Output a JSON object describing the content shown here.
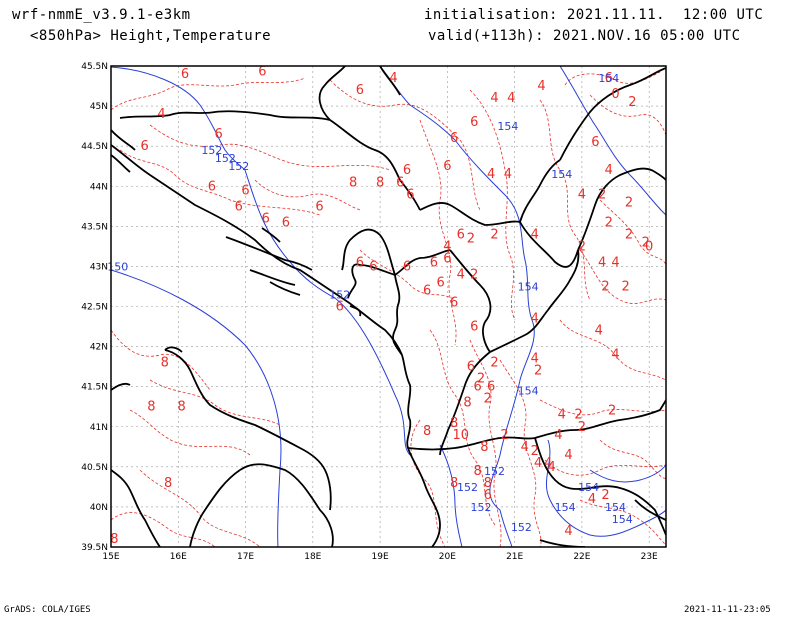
{
  "header": {
    "model": "wrf-nmmE_v3.9.1-e3km",
    "field": "<850hPa> Height,Temperature",
    "init": "initialisation: 2021.11.11.  12:00 UTC",
    "valid": "valid(+113h): 2021.NOV.16 05:00 UTC"
  },
  "footer": {
    "credit": "GrADS: COLA/IGES",
    "timestamp": "2021-11-11-23:05"
  },
  "map": {
    "lon_range": [
      15,
      23.25
    ],
    "lat_range": [
      39.5,
      45.5
    ],
    "x_ticks": [
      "15E",
      "16E",
      "17E",
      "18E",
      "19E",
      "20E",
      "21E",
      "22E",
      "23E"
    ],
    "y_ticks": [
      "39.5N",
      "40N",
      "40.5N",
      "41N",
      "41.5N",
      "42N",
      "42.5N",
      "43N",
      "43.5N",
      "44N",
      "44.5N",
      "45N",
      "45.5N"
    ],
    "colors": {
      "height": "#2a3fd6",
      "temperature": "#e8302a",
      "coast": "#000000",
      "grid": "#9a9a9a"
    },
    "height_labels": [
      {
        "text": "152",
        "lon": 16.5,
        "lat": 44.4
      },
      {
        "text": "152",
        "lon": 16.7,
        "lat": 44.3
      },
      {
        "text": "152",
        "lon": 16.9,
        "lat": 44.2
      },
      {
        "text": "150",
        "lon": 15.1,
        "lat": 42.95
      },
      {
        "text": "152",
        "lon": 18.4,
        "lat": 42.6
      },
      {
        "text": "154",
        "lon": 20.9,
        "lat": 44.7
      },
      {
        "text": "154",
        "lon": 21.7,
        "lat": 44.1
      },
      {
        "text": "154",
        "lon": 21.2,
        "lat": 42.7
      },
      {
        "text": "154",
        "lon": 21.2,
        "lat": 41.4
      },
      {
        "text": "154",
        "lon": 22.4,
        "lat": 45.3
      },
      {
        "text": "152",
        "lon": 20.7,
        "lat": 40.4
      },
      {
        "text": "152",
        "lon": 20.3,
        "lat": 40.2
      },
      {
        "text": "152",
        "lon": 20.5,
        "lat": 39.95
      },
      {
        "text": "152",
        "lon": 21.1,
        "lat": 39.7
      },
      {
        "text": "154",
        "lon": 21.75,
        "lat": 39.95
      },
      {
        "text": "154",
        "lon": 22.5,
        "lat": 39.95
      },
      {
        "text": "154",
        "lon": 22.6,
        "lat": 39.8
      },
      {
        "text": "154",
        "lon": 22.1,
        "lat": 40.2
      }
    ],
    "temp_labels": [
      {
        "text": "6",
        "lon": 16.1,
        "lat": 45.35
      },
      {
        "text": "6",
        "lon": 17.25,
        "lat": 45.38
      },
      {
        "text": "4",
        "lon": 15.75,
        "lat": 44.85
      },
      {
        "text": "6",
        "lon": 16.6,
        "lat": 44.6
      },
      {
        "text": "6",
        "lon": 15.5,
        "lat": 44.45
      },
      {
        "text": "6",
        "lon": 16.5,
        "lat": 43.95
      },
      {
        "text": "6",
        "lon": 17.0,
        "lat": 43.9
      },
      {
        "text": "8",
        "lon": 18.6,
        "lat": 44.0
      },
      {
        "text": "8",
        "lon": 19.0,
        "lat": 44.0
      },
      {
        "text": "6",
        "lon": 19.3,
        "lat": 44.0
      },
      {
        "text": "6",
        "lon": 18.7,
        "lat": 45.15
      },
      {
        "text": "6",
        "lon": 19.4,
        "lat": 44.15
      },
      {
        "text": "6",
        "lon": 19.45,
        "lat": 43.85
      },
      {
        "text": "6",
        "lon": 16.9,
        "lat": 43.7
      },
      {
        "text": "6",
        "lon": 17.3,
        "lat": 43.55
      },
      {
        "text": "6",
        "lon": 17.6,
        "lat": 43.5
      },
      {
        "text": "6",
        "lon": 18.1,
        "lat": 43.7
      },
      {
        "text": "4",
        "lon": 19.2,
        "lat": 45.3
      },
      {
        "text": "4",
        "lon": 20.7,
        "lat": 45.05
      },
      {
        "text": "4",
        "lon": 20.95,
        "lat": 45.05
      },
      {
        "text": "4",
        "lon": 21.4,
        "lat": 45.2
      },
      {
        "text": "6",
        "lon": 20.4,
        "lat": 44.75
      },
      {
        "text": "6",
        "lon": 20.0,
        "lat": 44.2
      },
      {
        "text": "6",
        "lon": 20.1,
        "lat": 44.55
      },
      {
        "text": "4",
        "lon": 20.65,
        "lat": 44.1
      },
      {
        "text": "4",
        "lon": 20.9,
        "lat": 44.1
      },
      {
        "text": "6",
        "lon": 22.2,
        "lat": 44.5
      },
      {
        "text": "4",
        "lon": 22.4,
        "lat": 44.15
      },
      {
        "text": "4",
        "lon": 22.0,
        "lat": 43.85
      },
      {
        "text": "2",
        "lon": 22.3,
        "lat": 43.85
      },
      {
        "text": "2",
        "lon": 22.7,
        "lat": 43.75
      },
      {
        "text": "2",
        "lon": 22.4,
        "lat": 43.5
      },
      {
        "text": "6",
        "lon": 20.2,
        "lat": 43.35
      },
      {
        "text": "2",
        "lon": 20.35,
        "lat": 43.3
      },
      {
        "text": "4",
        "lon": 20.0,
        "lat": 43.2
      },
      {
        "text": "2",
        "lon": 20.7,
        "lat": 43.35
      },
      {
        "text": "4",
        "lon": 21.3,
        "lat": 43.35
      },
      {
        "text": "2",
        "lon": 22.0,
        "lat": 43.2
      },
      {
        "text": "4",
        "lon": 22.3,
        "lat": 43.0
      },
      {
        "text": "4",
        "lon": 22.5,
        "lat": 43.0
      },
      {
        "text": "2",
        "lon": 22.7,
        "lat": 43.35
      },
      {
        "text": "2",
        "lon": 22.95,
        "lat": 43.25
      },
      {
        "text": "0",
        "lon": 23.0,
        "lat": 43.2
      },
      {
        "text": "2",
        "lon": 22.35,
        "lat": 42.7
      },
      {
        "text": "2",
        "lon": 22.65,
        "lat": 42.7
      },
      {
        "text": "6",
        "lon": 20.1,
        "lat": 42.5
      },
      {
        "text": "6",
        "lon": 19.7,
        "lat": 42.65
      },
      {
        "text": "6",
        "lon": 18.7,
        "lat": 43.0
      },
      {
        "text": "6",
        "lon": 18.9,
        "lat": 42.95
      },
      {
        "text": "6",
        "lon": 19.4,
        "lat": 42.95
      },
      {
        "text": "6",
        "lon": 19.8,
        "lat": 43.0
      },
      {
        "text": "6",
        "lon": 19.9,
        "lat": 42.75
      },
      {
        "text": "6",
        "lon": 20.0,
        "lat": 43.05
      },
      {
        "text": "4",
        "lon": 20.2,
        "lat": 42.85
      },
      {
        "text": "2",
        "lon": 20.4,
        "lat": 42.85
      },
      {
        "text": "6",
        "lon": 18.4,
        "lat": 42.45
      },
      {
        "text": "6",
        "lon": 20.4,
        "lat": 42.2
      },
      {
        "text": "4",
        "lon": 21.3,
        "lat": 42.3
      },
      {
        "text": "4",
        "lon": 22.25,
        "lat": 42.15
      },
      {
        "text": "4",
        "lon": 22.5,
        "lat": 41.85
      },
      {
        "text": "4",
        "lon": 21.3,
        "lat": 41.8
      },
      {
        "text": "2",
        "lon": 21.35,
        "lat": 41.65
      },
      {
        "text": "2",
        "lon": 20.7,
        "lat": 41.75
      },
      {
        "text": "6",
        "lon": 20.35,
        "lat": 41.7
      },
      {
        "text": "2",
        "lon": 20.5,
        "lat": 41.55
      },
      {
        "text": "6",
        "lon": 20.45,
        "lat": 41.45
      },
      {
        "text": "6",
        "lon": 20.65,
        "lat": 41.45
      },
      {
        "text": "2",
        "lon": 20.6,
        "lat": 41.3
      },
      {
        "text": "8",
        "lon": 20.3,
        "lat": 41.25
      },
      {
        "text": "8",
        "lon": 20.1,
        "lat": 41.0
      },
      {
        "text": "8",
        "lon": 19.7,
        "lat": 40.9
      },
      {
        "text": "10",
        "lon": 20.2,
        "lat": 40.85
      },
      {
        "text": "8",
        "lon": 20.55,
        "lat": 40.7
      },
      {
        "text": "2",
        "lon": 20.85,
        "lat": 40.85
      },
      {
        "text": "4",
        "lon": 21.15,
        "lat": 40.7
      },
      {
        "text": "4",
        "lon": 21.65,
        "lat": 40.85
      },
      {
        "text": "2",
        "lon": 21.3,
        "lat": 40.65
      },
      {
        "text": "4",
        "lon": 21.8,
        "lat": 40.6
      },
      {
        "text": "4",
        "lon": 21.35,
        "lat": 40.5
      },
      {
        "text": "4",
        "lon": 21.5,
        "lat": 40.5
      },
      {
        "text": "4",
        "lon": 21.55,
        "lat": 40.45
      },
      {
        "text": "4",
        "lon": 21.7,
        "lat": 41.1
      },
      {
        "text": "2",
        "lon": 21.95,
        "lat": 41.1
      },
      {
        "text": "2",
        "lon": 22.45,
        "lat": 41.15
      },
      {
        "text": "2",
        "lon": 22.0,
        "lat": 40.95
      },
      {
        "text": "8",
        "lon": 20.45,
        "lat": 40.4
      },
      {
        "text": "8",
        "lon": 20.6,
        "lat": 40.25
      },
      {
        "text": "8",
        "lon": 20.1,
        "lat": 40.25
      },
      {
        "text": "6",
        "lon": 20.6,
        "lat": 40.1
      },
      {
        "text": "4",
        "lon": 22.15,
        "lat": 40.05
      },
      {
        "text": "4",
        "lon": 21.8,
        "lat": 39.65
      },
      {
        "text": "2",
        "lon": 22.35,
        "lat": 40.1
      },
      {
        "text": "8",
        "lon": 15.8,
        "lat": 41.75
      },
      {
        "text": "8",
        "lon": 15.6,
        "lat": 41.2
      },
      {
        "text": "8",
        "lon": 16.05,
        "lat": 41.2
      },
      {
        "text": "8",
        "lon": 15.85,
        "lat": 40.25
      },
      {
        "text": "8",
        "lon": 15.05,
        "lat": 39.55
      },
      {
        "text": "2",
        "lon": 22.75,
        "lat": 45.0
      },
      {
        "text": "0",
        "lon": 22.5,
        "lat": 45.1
      },
      {
        "text": "6",
        "lon": 22.4,
        "lat": 45.3
      }
    ]
  }
}
